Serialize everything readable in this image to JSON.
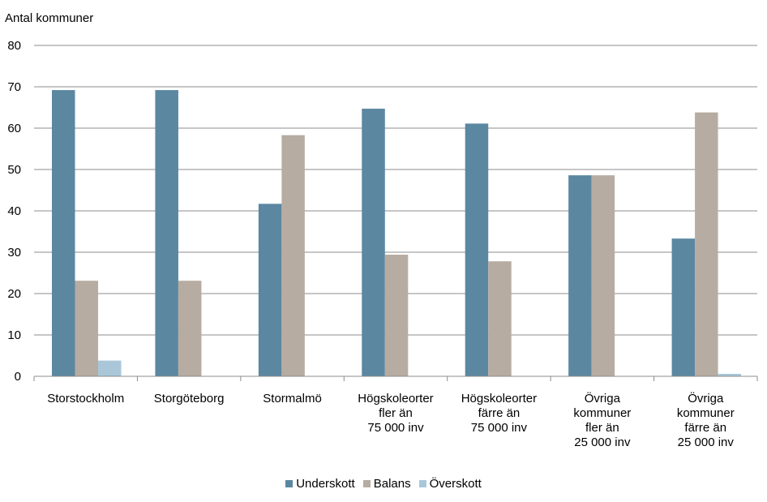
{
  "chart_data": {
    "type": "bar",
    "title": "",
    "ylabel": "Antal kommuner",
    "xlabel": "",
    "ylim": [
      0,
      80
    ],
    "yticks": [
      0,
      10,
      20,
      30,
      40,
      50,
      60,
      70,
      80
    ],
    "grid": true,
    "legend_position": "bottom",
    "categories": [
      [
        "Storstockholm"
      ],
      [
        "Storgöteborg"
      ],
      [
        "Stormalmö"
      ],
      [
        "Högskoleorter",
        "fler än",
        "75 000 inv"
      ],
      [
        "Högskoleorter",
        "färre än",
        "75 000 inv"
      ],
      [
        "Övriga",
        "kommuner",
        "fler än",
        "25 000 inv"
      ],
      [
        "Övriga",
        "kommuner",
        "färre än",
        "25 000 inv"
      ]
    ],
    "series": [
      {
        "name": "Underskott",
        "color": "#5b87a1",
        "values": [
          69.2,
          69.2,
          41.7,
          64.7,
          61.1,
          48.6,
          33.3
        ]
      },
      {
        "name": "Balans",
        "color": "#b7aca1",
        "values": [
          23.1,
          23.1,
          58.3,
          29.4,
          27.8,
          48.6,
          63.8
        ]
      },
      {
        "name": "Överskott",
        "color": "#a9c7d9",
        "values": [
          3.8,
          0,
          0,
          0,
          0,
          0,
          0.6
        ]
      }
    ]
  }
}
